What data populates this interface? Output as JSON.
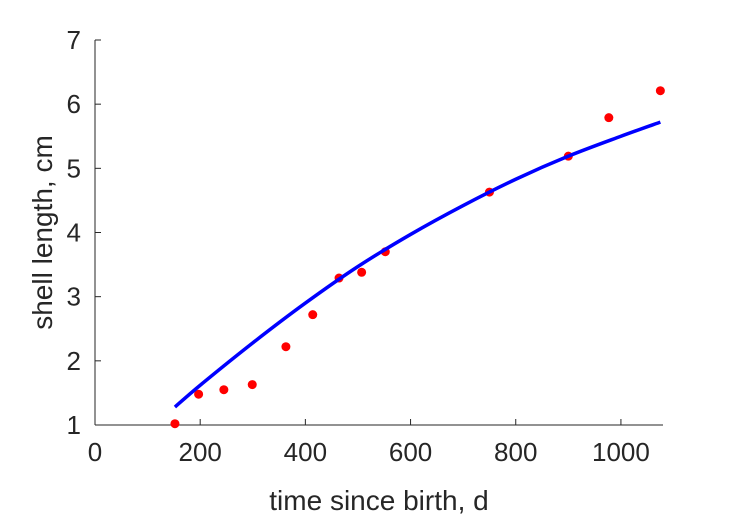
{
  "chart_data": {
    "type": "scatter",
    "title": "",
    "xlabel": "time since birth, d",
    "ylabel": "shell length, cm",
    "xlim": [
      0,
      1080
    ],
    "ylim": [
      1,
      7
    ],
    "xticks": [
      0,
      200,
      400,
      600,
      800,
      1000
    ],
    "yticks": [
      1,
      2,
      3,
      4,
      5,
      6,
      7
    ],
    "grid": false,
    "legend": "none",
    "series": [
      {
        "kind": "scatter",
        "color": "#ff0000",
        "x": [
          152,
          197,
          245,
          299,
          363,
          414,
          464,
          507,
          552,
          750,
          900,
          977,
          1075
        ],
        "y": [
          1.02,
          1.48,
          1.55,
          1.63,
          2.22,
          2.72,
          3.29,
          3.38,
          3.7,
          4.63,
          5.19,
          5.79,
          6.21
        ]
      },
      {
        "kind": "line",
        "color": "#0000ff",
        "x": [
          152,
          200,
          300,
          400,
          500,
          600,
          700,
          800,
          900,
          1000,
          1075
        ],
        "y": [
          1.28,
          1.62,
          2.28,
          2.9,
          3.47,
          3.97,
          4.42,
          4.83,
          5.19,
          5.5,
          5.72
        ]
      }
    ]
  }
}
